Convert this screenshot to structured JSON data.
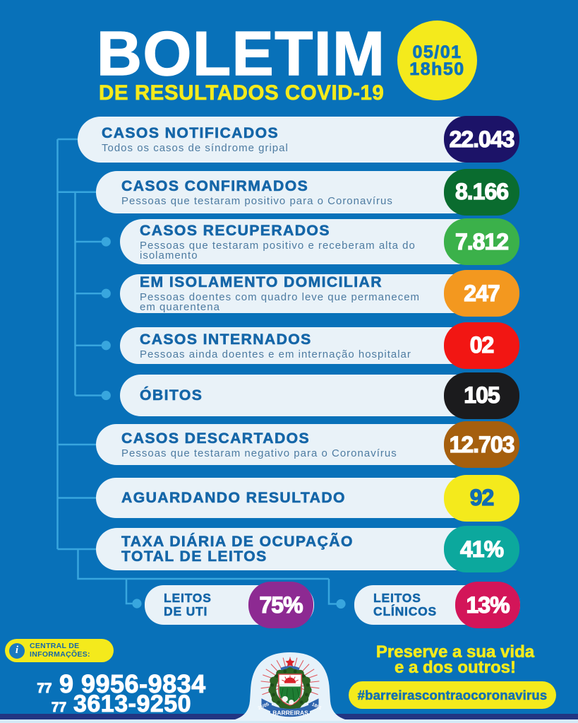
{
  "header": {
    "title": "BOLETIM",
    "subtitle": "DE RESULTADOS COVID-19",
    "date": "05/01",
    "time": "18h50"
  },
  "colors": {
    "background": "#0871b9",
    "row_bg": "#e9f2f8",
    "row_title": "#1566a8",
    "row_subtitle": "#4d7ba1",
    "connector": "#38a6de",
    "yellow": "#f4ea1c",
    "navy_bar": "#223582",
    "pale_bar": "#d5eaf6"
  },
  "rows": [
    {
      "id": "notificados",
      "title": "CASOS NOTIFICADOS",
      "subtitle": "Todos os casos de síndrome gripal",
      "value": "22.043",
      "badge_color": "#1c1368",
      "value_color": "#ffffff",
      "level": 0
    },
    {
      "id": "confirmados",
      "title": "CASOS CONFIRMADOS",
      "subtitle": "Pessoas que testaram positivo para o Coronavírus",
      "value": "8.166",
      "badge_color": "#0a6c2f",
      "value_color": "#ffffff",
      "level": 1
    },
    {
      "id": "recuperados",
      "title": "CASOS RECUPERADOS",
      "subtitle": "Pessoas que testaram positivo e receberam alta do\nisolamento",
      "value": "7.812",
      "badge_color": "#3bb14a",
      "value_color": "#ffffff",
      "level": 2
    },
    {
      "id": "isolamento",
      "title": "EM ISOLAMENTO DOMICILIAR",
      "subtitle": "Pessoas doentes com quadro leve que permanecem\nem quarentena",
      "value": "247",
      "badge_color": "#f3981f",
      "value_color": "#ffffff",
      "level": 2
    },
    {
      "id": "internados",
      "title": "CASOS INTERNADOS",
      "subtitle": "Pessoas ainda doentes e em internação hospitalar",
      "value": "02",
      "badge_color": "#f21613",
      "value_color": "#ffffff",
      "level": 2
    },
    {
      "id": "obitos",
      "title": "ÓBITOS",
      "subtitle": "",
      "value": "105",
      "badge_color": "#1b1b1d",
      "value_color": "#ffffff",
      "level": 2
    },
    {
      "id": "descartados",
      "title": "CASOS DESCARTADOS",
      "subtitle": "Pessoas que testaram negativo para o Coronavírus",
      "value": "12.703",
      "badge_color": "#a55f0e",
      "value_color": "#ffffff",
      "level": 1
    },
    {
      "id": "aguardando",
      "title": "AGUARDANDO RESULTADO",
      "subtitle": "",
      "value": "92",
      "badge_color": "#f4ea1c",
      "value_color": "#136cb0",
      "level": 1
    },
    {
      "id": "taxa",
      "title": "TAXA DIÁRIA DE OCUPAÇÃO\nTOTAL DE LEITOS",
      "subtitle": "",
      "value": "41%",
      "badge_color": "#0ca89d",
      "value_color": "#ffffff",
      "level": 1
    }
  ],
  "beds": [
    {
      "id": "uti",
      "title": "LEITOS\nDE UTI",
      "value": "75%",
      "badge_color": "#8d2a92",
      "value_color": "#ffffff"
    },
    {
      "id": "clinicos",
      "title": "LEITOS\nCLÍNICOS",
      "value": "13%",
      "badge_color": "#d31559",
      "value_color": "#ffffff"
    }
  ],
  "footer": {
    "info_label": "CENTRAL DE\nINFORMAÇÕES:",
    "info_icon": "i",
    "phone1_prefix": "77",
    "phone1_number": " 9 9956-9834",
    "phone2_prefix": "77",
    "phone2_number": " 3613-9250",
    "preserve_line1": "Preserve a sua vida",
    "preserve_line2": "e a dos outros!",
    "hashtag": "#barreirascontraocoronavirus",
    "crest_city": "BARREIRAS",
    "crest_date_left": "26/05",
    "crest_date_right": "1891"
  }
}
